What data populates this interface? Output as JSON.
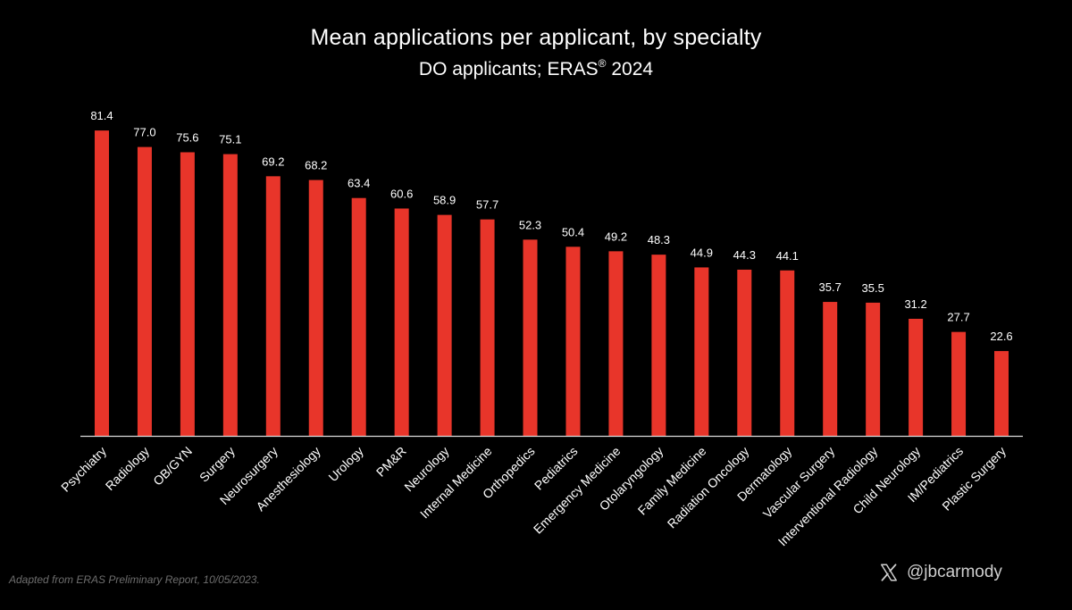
{
  "chart_data": {
    "type": "bar",
    "title": "Mean applications per applicant, by specialty",
    "subtitle_main": "DO applicants; ERAS",
    "subtitle_mark": "®",
    "subtitle_year": "2024",
    "categories": [
      "Psychiatry",
      "Radiology",
      "OB/GYN",
      "Surgery",
      "Neurosurgery",
      "Anesthesiology",
      "Urology",
      "PM&R",
      "Neurology",
      "Internal Medicine",
      "Orthopedics",
      "Pediatrics",
      "Emergency Medicine",
      "Otolaryngology",
      "Family Medicine",
      "Radiation Oncology",
      "Dermatology",
      "Vascular Surgery",
      "Interventional Radiology",
      "Child Neurology",
      "IM/Pediatrics",
      "Plastic Surgery"
    ],
    "values": [
      81.4,
      77.0,
      75.6,
      75.1,
      69.2,
      68.2,
      63.4,
      60.6,
      58.9,
      57.7,
      52.3,
      50.4,
      49.2,
      48.3,
      44.9,
      44.3,
      44.1,
      35.7,
      35.5,
      31.2,
      27.7,
      22.6
    ],
    "value_labels": [
      "81.4",
      "77.0",
      "75.6",
      "75.1",
      "69.2",
      "68.2",
      "63.4",
      "60.6",
      "58.9",
      "57.7",
      "52.3",
      "50.4",
      "49.2",
      "48.3",
      "44.9",
      "44.3",
      "44.1",
      "35.7",
      "35.5",
      "31.2",
      "27.7",
      "22.6"
    ],
    "ylim": [
      0,
      90
    ],
    "xlabel": "",
    "ylabel": "",
    "grid": false,
    "legend": "none",
    "bar_color": "#e8352a",
    "label_color": "#ffffff",
    "axis_color": "#d9d9d9"
  },
  "footer": {
    "source": "Adapted from ERAS Preliminary Report, 10/05/2023.",
    "handle": "@jbcarmody",
    "social_icon": "x-logo-icon"
  }
}
